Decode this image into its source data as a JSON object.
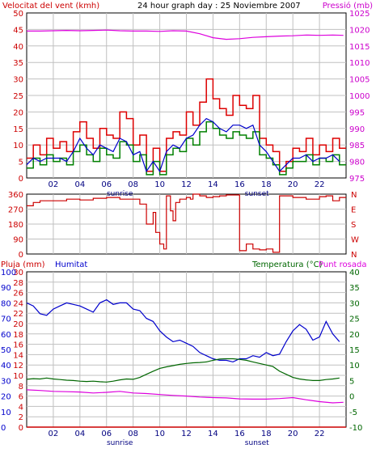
{
  "header": {
    "wind_title": "Velocitat del vent (kmh)",
    "main_title": "24 hour graph day : 25 Noviembre 2007",
    "pressure_title": "Pressió (mb)"
  },
  "colors": {
    "wind": "#ff0000",
    "gust": "#dd0000",
    "pressure": "#dd00dd",
    "humidity": "#0000cc",
    "rain": "#cc0000",
    "temperature": "#006600",
    "dewpoint": "#dd00dd",
    "direction": "#cc0000",
    "grid": "#c0c0c0",
    "frame": "#000000"
  },
  "x_ticks": [
    "02",
    "04",
    "06",
    "08",
    "10",
    "12",
    "14",
    "16",
    "18",
    "20",
    "22"
  ],
  "sunrise_label": "sunrise",
  "sunset_label": "sunset",
  "chart_data": [
    {
      "type": "line",
      "title": "24 hour graph day : 25 Noviembre 2007",
      "left_axis_label": "Velocitat del vent (kmh)",
      "right_axis_label": "Pressió (mb)",
      "x_range_hours": [
        0,
        24
      ],
      "left_ticks": [
        0,
        5,
        10,
        15,
        20,
        25,
        30,
        35,
        40,
        45,
        50
      ],
      "left_ylim": [
        0,
        50
      ],
      "right_ticks": [
        975,
        980,
        985,
        990,
        995,
        1000,
        1005,
        1010,
        1015,
        1020,
        1025
      ],
      "right_ylim": [
        975,
        1025
      ],
      "grid": true,
      "series": [
        {
          "role": "gust",
          "axis": "left",
          "x": [
            0,
            0.5,
            1,
            1.5,
            2,
            2.5,
            3,
            3.5,
            4,
            4.5,
            5,
            5.5,
            6,
            6.5,
            7,
            7.5,
            8,
            8.5,
            9,
            9.5,
            10,
            10.5,
            11,
            11.5,
            12,
            12.5,
            13,
            13.5,
            14,
            14.5,
            15,
            15.5,
            16,
            16.5,
            17,
            17.5,
            18,
            18.5,
            19,
            19.5,
            20,
            20.5,
            21,
            21.5,
            22,
            22.5,
            23,
            23.5
          ],
          "values": [
            6,
            10,
            7,
            12,
            9,
            11,
            8,
            14,
            17,
            12,
            9,
            15,
            13,
            12,
            20,
            18,
            10,
            13,
            2,
            9,
            2,
            12,
            14,
            13,
            20,
            16,
            23,
            30,
            24,
            21,
            19,
            25,
            22,
            21,
            25,
            12,
            10,
            8,
            2,
            5,
            9,
            8,
            12,
            7,
            10,
            8,
            12,
            9
          ]
        },
        {
          "role": "wind",
          "axis": "left",
          "x": [
            0,
            0.5,
            1,
            1.5,
            2,
            2.5,
            3,
            3.5,
            4,
            4.5,
            5,
            5.5,
            6,
            6.5,
            7,
            7.5,
            8,
            8.5,
            9,
            9.5,
            10,
            10.5,
            11,
            11.5,
            12,
            12.5,
            13,
            13.5,
            14,
            14.5,
            15,
            15.5,
            16,
            16.5,
            17,
            17.5,
            18,
            18.5,
            19,
            19.5,
            20,
            20.5,
            21,
            21.5,
            22,
            22.5,
            23,
            23.5
          ],
          "values": [
            3,
            6,
            4,
            7,
            5,
            6,
            4,
            8,
            10,
            7,
            5,
            9,
            7,
            6,
            11,
            10,
            5,
            7,
            1,
            5,
            1,
            7,
            9,
            8,
            12,
            10,
            14,
            17,
            15,
            13,
            12,
            14,
            13,
            12,
            14,
            7,
            6,
            4,
            1,
            3,
            5,
            5,
            7,
            4,
            6,
            5,
            7,
            4
          ]
        },
        {
          "role": "wind-average",
          "axis": "left",
          "x": [
            0,
            0.5,
            1,
            1.5,
            2,
            2.5,
            3,
            3.5,
            4,
            4.5,
            5,
            5.5,
            6,
            6.5,
            7,
            7.5,
            8,
            8.5,
            9,
            9.5,
            10,
            10.5,
            11,
            11.5,
            12,
            12.5,
            13,
            13.5,
            14,
            14.5,
            15,
            15.5,
            16,
            16.5,
            17,
            17.5,
            18,
            18.5,
            19,
            19.5,
            20,
            20.5,
            21,
            21.5,
            22,
            22.5,
            23,
            23.5
          ],
          "values": [
            4,
            6,
            5,
            6,
            6,
            6,
            5,
            8,
            12,
            9,
            7,
            10,
            9,
            8,
            12,
            11,
            7,
            8,
            2,
            5,
            2,
            8,
            10,
            9,
            12,
            13,
            16,
            18,
            17,
            15,
            14,
            16,
            16,
            15,
            16,
            10,
            8,
            5,
            2,
            4,
            6,
            6,
            7,
            5,
            6,
            6,
            7,
            5
          ]
        },
        {
          "role": "pressure",
          "axis": "right",
          "x": [
            0,
            1,
            2,
            3,
            4,
            5,
            6,
            7,
            8,
            9,
            10,
            11,
            12,
            13,
            14,
            15,
            16,
            17,
            18,
            19,
            20,
            21,
            22,
            23,
            23.8
          ],
          "values": [
            1019.5,
            1019.5,
            1019.6,
            1019.7,
            1019.6,
            1019.7,
            1019.8,
            1019.6,
            1019.5,
            1019.5,
            1019.4,
            1019.6,
            1019.5,
            1018.7,
            1017.5,
            1017.0,
            1017.2,
            1017.6,
            1017.8,
            1018.0,
            1018.1,
            1018.3,
            1018.2,
            1018.3,
            1018.2
          ]
        }
      ]
    },
    {
      "type": "line",
      "title": "",
      "x_range_hours": [
        0,
        24
      ],
      "left_ticks": [
        0,
        90,
        180,
        270,
        360
      ],
      "left_ylim": [
        0,
        360
      ],
      "right_tick_labels": [
        "N",
        "E",
        "S",
        "W",
        "N"
      ],
      "grid": true,
      "series": [
        {
          "role": "wind-direction",
          "x": [
            0,
            0.5,
            1,
            2,
            3,
            4,
            5,
            6,
            7,
            8,
            8.5,
            9,
            9.5,
            9.7,
            10,
            10.3,
            10.5,
            10.8,
            11.0,
            11.2,
            11.5,
            12,
            12.3,
            12.5,
            13,
            13.5,
            14,
            14.5,
            15,
            15.5,
            16,
            16.5,
            17,
            17.5,
            18,
            18.5,
            19,
            20,
            21,
            22,
            22.5,
            23,
            23.5
          ],
          "values": [
            290,
            310,
            320,
            320,
            330,
            325,
            335,
            340,
            330,
            330,
            300,
            180,
            250,
            130,
            60,
            30,
            350,
            260,
            200,
            310,
            330,
            340,
            330,
            360,
            350,
            340,
            345,
            350,
            355,
            355,
            20,
            60,
            30,
            25,
            30,
            10,
            350,
            340,
            330,
            345,
            350,
            320,
            340
          ]
        }
      ]
    },
    {
      "type": "line",
      "title": "",
      "left_axis_label": "Pluja (mm)",
      "humidity_axis_label": "Humitat",
      "right_axis_label": "Temperatura (°C)",
      "right_axis_label_2": "Punt rosada",
      "x_range_hours": [
        0,
        24
      ],
      "rain_ticks": [
        0,
        2,
        4,
        6,
        8,
        10,
        12,
        14,
        16,
        18,
        20,
        22,
        24,
        26,
        28,
        30
      ],
      "rain_ylim": [
        0,
        30
      ],
      "humidity_ticks": [
        0,
        10,
        20,
        30,
        40,
        50,
        60,
        70,
        80,
        90,
        100
      ],
      "humidity_ylim": [
        0,
        100
      ],
      "temp_ticks": [
        -10,
        -5,
        0,
        5,
        10,
        15,
        20,
        25,
        30,
        35,
        40
      ],
      "temp_ylim": [
        -10,
        40
      ],
      "grid": true,
      "series": [
        {
          "role": "rain",
          "axis": "rain",
          "x": [
            0,
            24
          ],
          "values": [
            0,
            0
          ]
        },
        {
          "role": "humidity",
          "axis": "humidity",
          "x": [
            0,
            0.5,
            1,
            1.5,
            2,
            2.5,
            3,
            3.5,
            4,
            4.5,
            5,
            5.5,
            6,
            6.5,
            7,
            7.5,
            8,
            8.5,
            9,
            9.5,
            10,
            10.5,
            11,
            11.5,
            12,
            12.5,
            13,
            13.5,
            14,
            14.5,
            15,
            15.5,
            16,
            16.5,
            17,
            17.5,
            18,
            18.5,
            19,
            19.5,
            20,
            20.5,
            21,
            21.5,
            22,
            22.5,
            23,
            23.5
          ],
          "values": [
            80,
            78,
            73,
            72,
            76,
            78,
            80,
            79,
            78,
            76,
            74,
            80,
            82,
            79,
            80,
            80,
            76,
            75,
            70,
            68,
            62,
            58,
            55,
            56,
            54,
            52,
            48,
            46,
            44,
            43,
            43,
            42,
            44,
            44,
            46,
            45,
            48,
            46,
            47,
            55,
            62,
            66,
            63,
            56,
            58,
            68,
            60,
            55
          ]
        },
        {
          "role": "temperature",
          "axis": "temp",
          "x": [
            0,
            0.5,
            1,
            1.5,
            2,
            2.5,
            3,
            3.5,
            4,
            4.5,
            5,
            5.5,
            6,
            6.5,
            7,
            7.5,
            8,
            8.5,
            9,
            9.5,
            10,
            10.5,
            11,
            11.5,
            12,
            12.5,
            13,
            13.5,
            14,
            14.5,
            15,
            15.5,
            16,
            16.5,
            17,
            17.5,
            18,
            18.5,
            19,
            19.5,
            20,
            20.5,
            21,
            21.5,
            22,
            22.5,
            23,
            23.5
          ],
          "values": [
            5.4,
            5.6,
            5.5,
            5.8,
            5.5,
            5.3,
            5.1,
            5.0,
            4.8,
            4.7,
            4.8,
            4.6,
            4.5,
            4.8,
            5.2,
            5.5,
            5.4,
            6.0,
            7.0,
            8.0,
            8.9,
            9.4,
            9.8,
            10.2,
            10.5,
            10.7,
            10.8,
            11.0,
            11.5,
            11.9,
            12.0,
            12.0,
            11.8,
            11.5,
            11.0,
            10.5,
            10.0,
            9.5,
            8.0,
            7.0,
            6.0,
            5.5,
            5.2,
            5.0,
            5.0,
            5.3,
            5.5,
            5.8
          ]
        },
        {
          "role": "dew-point",
          "axis": "temp",
          "x": [
            0,
            1,
            2,
            3,
            4,
            5,
            6,
            7,
            8,
            9,
            10,
            11,
            12,
            13,
            14,
            15,
            16,
            17,
            18,
            19,
            20,
            21,
            22,
            23,
            23.8
          ],
          "values": [
            2.0,
            1.8,
            1.5,
            1.4,
            1.3,
            1.0,
            1.2,
            1.5,
            1.0,
            0.8,
            0.5,
            0.2,
            0.0,
            -0.3,
            -0.5,
            -0.6,
            -0.9,
            -1.0,
            -1.0,
            -0.8,
            -0.5,
            -1.2,
            -1.8,
            -2.2,
            -2.0
          ]
        }
      ]
    }
  ]
}
